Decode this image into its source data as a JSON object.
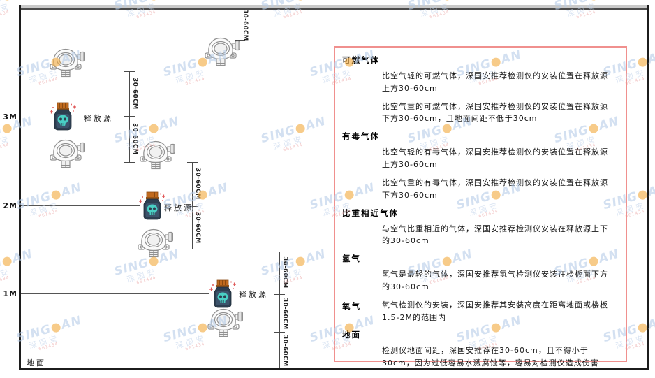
{
  "watermark": {
    "en_left": "SING",
    "dot": "●",
    "en_right": "AN",
    "cn": "深国安",
    "red": "661434"
  },
  "room": {
    "ground_label": "地面"
  },
  "diagram": {
    "release_source_label": "释放源",
    "dim_label": "30-60CM",
    "levels": [
      {
        "label": "3M"
      },
      {
        "label": "2M"
      },
      {
        "label": "1M"
      }
    ]
  },
  "panel": {
    "sections": [
      {
        "heading": "可燃气体",
        "paras": [
          "比空气轻的可燃气体，深国安推荐检测仪的安装位置在释放源上方30-60cm",
          "比空气重的可燃气体，深国安推荐检测仪的安装位置在释放源下方30-60cm，且地面间距不低于30cm"
        ]
      },
      {
        "heading": "有毒气体",
        "paras": [
          "比空气轻的有毒气体，深国安推荐检测仪的安装位置在释放源上方30-60cm",
          "比空气重的有毒气体，深国安推荐检测仪的安装位置在释放源下方30-60cm"
        ]
      },
      {
        "heading": "比重相近气体",
        "paras": [
          "与空气比重相近的气体，深国安推荐检测仪安装在释放源上下的30-60cm"
        ]
      },
      {
        "heading": "氢气",
        "paras": [
          "氢气是最轻的气体，深国安推荐氢气检测仪安装在楼板面下方的30-60cm"
        ]
      },
      {
        "heading": "氧气",
        "paras": [
          "氧气检测仪的安装，深国安推荐其安装高度在距离地面或楼板1.5-2M的范围内"
        ]
      },
      {
        "heading": "地面",
        "paras": [
          "检测仪地面间距，深国安推荐在30-60cm，且不得小于30cm，因为过低容易水溅腐蚀等，容易对检测仪造成伤害"
        ]
      }
    ]
  },
  "colors": {
    "panel_border": "#f0908e",
    "watermark_blue": "#b7cde8",
    "watermark_orange": "#f2a93c",
    "source_body": "#2d3e50",
    "source_cap": "#c06a1e",
    "source_skull": "#49cfc4",
    "detector_line": "#909090"
  }
}
